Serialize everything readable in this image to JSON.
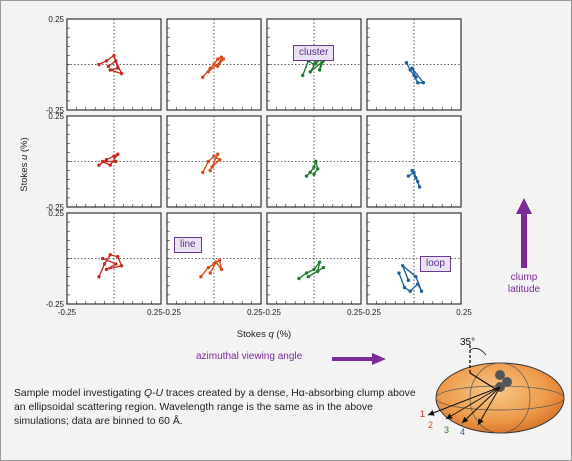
{
  "colors": {
    "clump_latitude_top": "#c0392b",
    "clump_latitude_col1": "#c0392b",
    "series_colors": [
      "#c8281e",
      "#d94a16",
      "#1f7a2e",
      "#1f5f9c"
    ],
    "accent_purple": "#7b2b97"
  },
  "labels": {
    "cluster": "cluster",
    "line": "line",
    "loop": "loop",
    "clump_latitude_line1": "clump",
    "clump_latitude_line2": "latitude",
    "azimuthal": "azimuthal viewing angle",
    "angle": "35°",
    "view_numbers": [
      "1",
      "2",
      "3",
      "4"
    ]
  },
  "caption": {
    "part1": "Sample model investigating ",
    "italic": "Q-U",
    "part2": " traces created by a dense, Hα-absorbing clump above an ellipsoidal scattering region.  Wavelength range is the same as in the above simulations; data are binned to 60 Å."
  },
  "chart_data": {
    "type": "scatter",
    "rows": 3,
    "cols": 4,
    "xlabel_prefix": "Stokes ",
    "xlabel_var": "q",
    "xlabel_unit": " (%)",
    "ylabel_prefix": "Stokes ",
    "ylabel_var": "u",
    "ylabel_unit": " (%)",
    "xlim": [
      -0.25,
      0.25
    ],
    "ylim": [
      -0.25,
      0.25
    ],
    "x_tick_labels": [
      "-0.25",
      "0.25",
      "-0.25",
      "0.25",
      "-0.25",
      "0.25",
      "-0.25",
      "0.25"
    ],
    "x_tick_text": [
      "-0.25",
      "0.25-0.25",
      "0.25-0.25",
      "0.25-0.25",
      "0.25"
    ],
    "y_tick_labels": [
      "0.25",
      "-0.25"
    ],
    "grid": "dotted crosshair at zero",
    "panels": [
      {
        "row": 0,
        "col": 0,
        "color_index": 0,
        "points": [
          [
            -0.08,
            0.0
          ],
          [
            -0.04,
            0.02
          ],
          [
            0.0,
            0.05
          ],
          [
            0.02,
            -0.02
          ],
          [
            -0.02,
            -0.03
          ],
          [
            0.04,
            -0.05
          ],
          [
            0.01,
            0.02
          ],
          [
            -0.03,
            -0.01
          ]
        ]
      },
      {
        "row": 0,
        "col": 1,
        "color_index": 1,
        "points": [
          [
            -0.06,
            -0.07
          ],
          [
            -0.02,
            -0.02
          ],
          [
            0.0,
            0.0
          ],
          [
            0.02,
            0.03
          ],
          [
            0.04,
            0.04
          ],
          [
            0.02,
            -0.01
          ],
          [
            0.05,
            0.03
          ],
          [
            -0.03,
            -0.04
          ]
        ]
      },
      {
        "row": 0,
        "col": 2,
        "color_index": 2,
        "points": [
          [
            -0.06,
            -0.06
          ],
          [
            -0.03,
            0.02
          ],
          [
            0.0,
            0.0
          ],
          [
            0.04,
            0.03
          ],
          [
            0.03,
            -0.03
          ],
          [
            0.05,
            0.02
          ],
          [
            -0.02,
            -0.04
          ],
          [
            0.01,
            0.01
          ]
        ]
      },
      {
        "row": 0,
        "col": 3,
        "color_index": 3,
        "points": [
          [
            -0.04,
            0.01
          ],
          [
            -0.02,
            -0.03
          ],
          [
            0.0,
            -0.06
          ],
          [
            0.02,
            -0.1
          ],
          [
            0.05,
            -0.1
          ],
          [
            -0.01,
            -0.02
          ],
          [
            0.01,
            -0.07
          ]
        ]
      },
      {
        "row": 1,
        "col": 0,
        "color_index": 0,
        "points": [
          [
            -0.08,
            -0.02
          ],
          [
            -0.04,
            0.01
          ],
          [
            0.0,
            0.03
          ],
          [
            0.02,
            0.04
          ],
          [
            -0.02,
            -0.02
          ],
          [
            -0.06,
            0.0
          ],
          [
            0.01,
            0.0
          ]
        ]
      },
      {
        "row": 1,
        "col": 1,
        "color_index": 1,
        "points": [
          [
            -0.06,
            -0.06
          ],
          [
            -0.03,
            0.0
          ],
          [
            0.0,
            0.03
          ],
          [
            0.03,
            0.01
          ],
          [
            -0.01,
            -0.03
          ],
          [
            0.02,
            0.04
          ],
          [
            -0.02,
            -0.05
          ]
        ]
      },
      {
        "row": 1,
        "col": 2,
        "color_index": 2,
        "points": [
          [
            -0.04,
            -0.08
          ],
          [
            -0.02,
            -0.06
          ],
          [
            0.0,
            -0.03
          ],
          [
            0.01,
            0.0
          ],
          [
            0.02,
            -0.04
          ],
          [
            0.0,
            -0.07
          ]
        ]
      },
      {
        "row": 1,
        "col": 3,
        "color_index": 3,
        "points": [
          [
            -0.03,
            -0.08
          ],
          [
            0.0,
            -0.06
          ],
          [
            0.02,
            -0.11
          ],
          [
            0.03,
            -0.14
          ],
          [
            0.01,
            -0.09
          ],
          [
            -0.01,
            -0.05
          ]
        ]
      },
      {
        "row": 2,
        "col": 0,
        "color_index": 0,
        "points": [
          [
            -0.08,
            -0.1
          ],
          [
            -0.05,
            -0.03
          ],
          [
            -0.02,
            0.02
          ],
          [
            0.02,
            0.01
          ],
          [
            0.04,
            -0.04
          ],
          [
            -0.04,
            -0.06
          ],
          [
            0.01,
            -0.03
          ],
          [
            -0.06,
            0.0
          ]
        ]
      },
      {
        "row": 2,
        "col": 1,
        "color_index": 1,
        "points": [
          [
            -0.07,
            -0.1
          ],
          [
            -0.03,
            -0.05
          ],
          [
            0.0,
            -0.03
          ],
          [
            0.03,
            -0.01
          ],
          [
            0.04,
            -0.06
          ],
          [
            0.01,
            -0.02
          ],
          [
            -0.02,
            -0.08
          ]
        ]
      },
      {
        "row": 2,
        "col": 2,
        "color_index": 2,
        "points": [
          [
            -0.08,
            -0.11
          ],
          [
            -0.04,
            -0.08
          ],
          [
            0.0,
            -0.06
          ],
          [
            0.03,
            -0.02
          ],
          [
            0.02,
            -0.07
          ],
          [
            -0.03,
            -0.1
          ],
          [
            0.05,
            -0.05
          ]
        ]
      },
      {
        "row": 2,
        "col": 3,
        "color_index": 3,
        "points": [
          [
            -0.08,
            -0.08
          ],
          [
            -0.05,
            -0.16
          ],
          [
            -0.02,
            -0.18
          ],
          [
            0.02,
            -0.14
          ],
          [
            0.04,
            -0.18
          ],
          [
            0.01,
            -0.1
          ],
          [
            -0.06,
            -0.04
          ],
          [
            -0.03,
            -0.12
          ]
        ]
      }
    ]
  }
}
